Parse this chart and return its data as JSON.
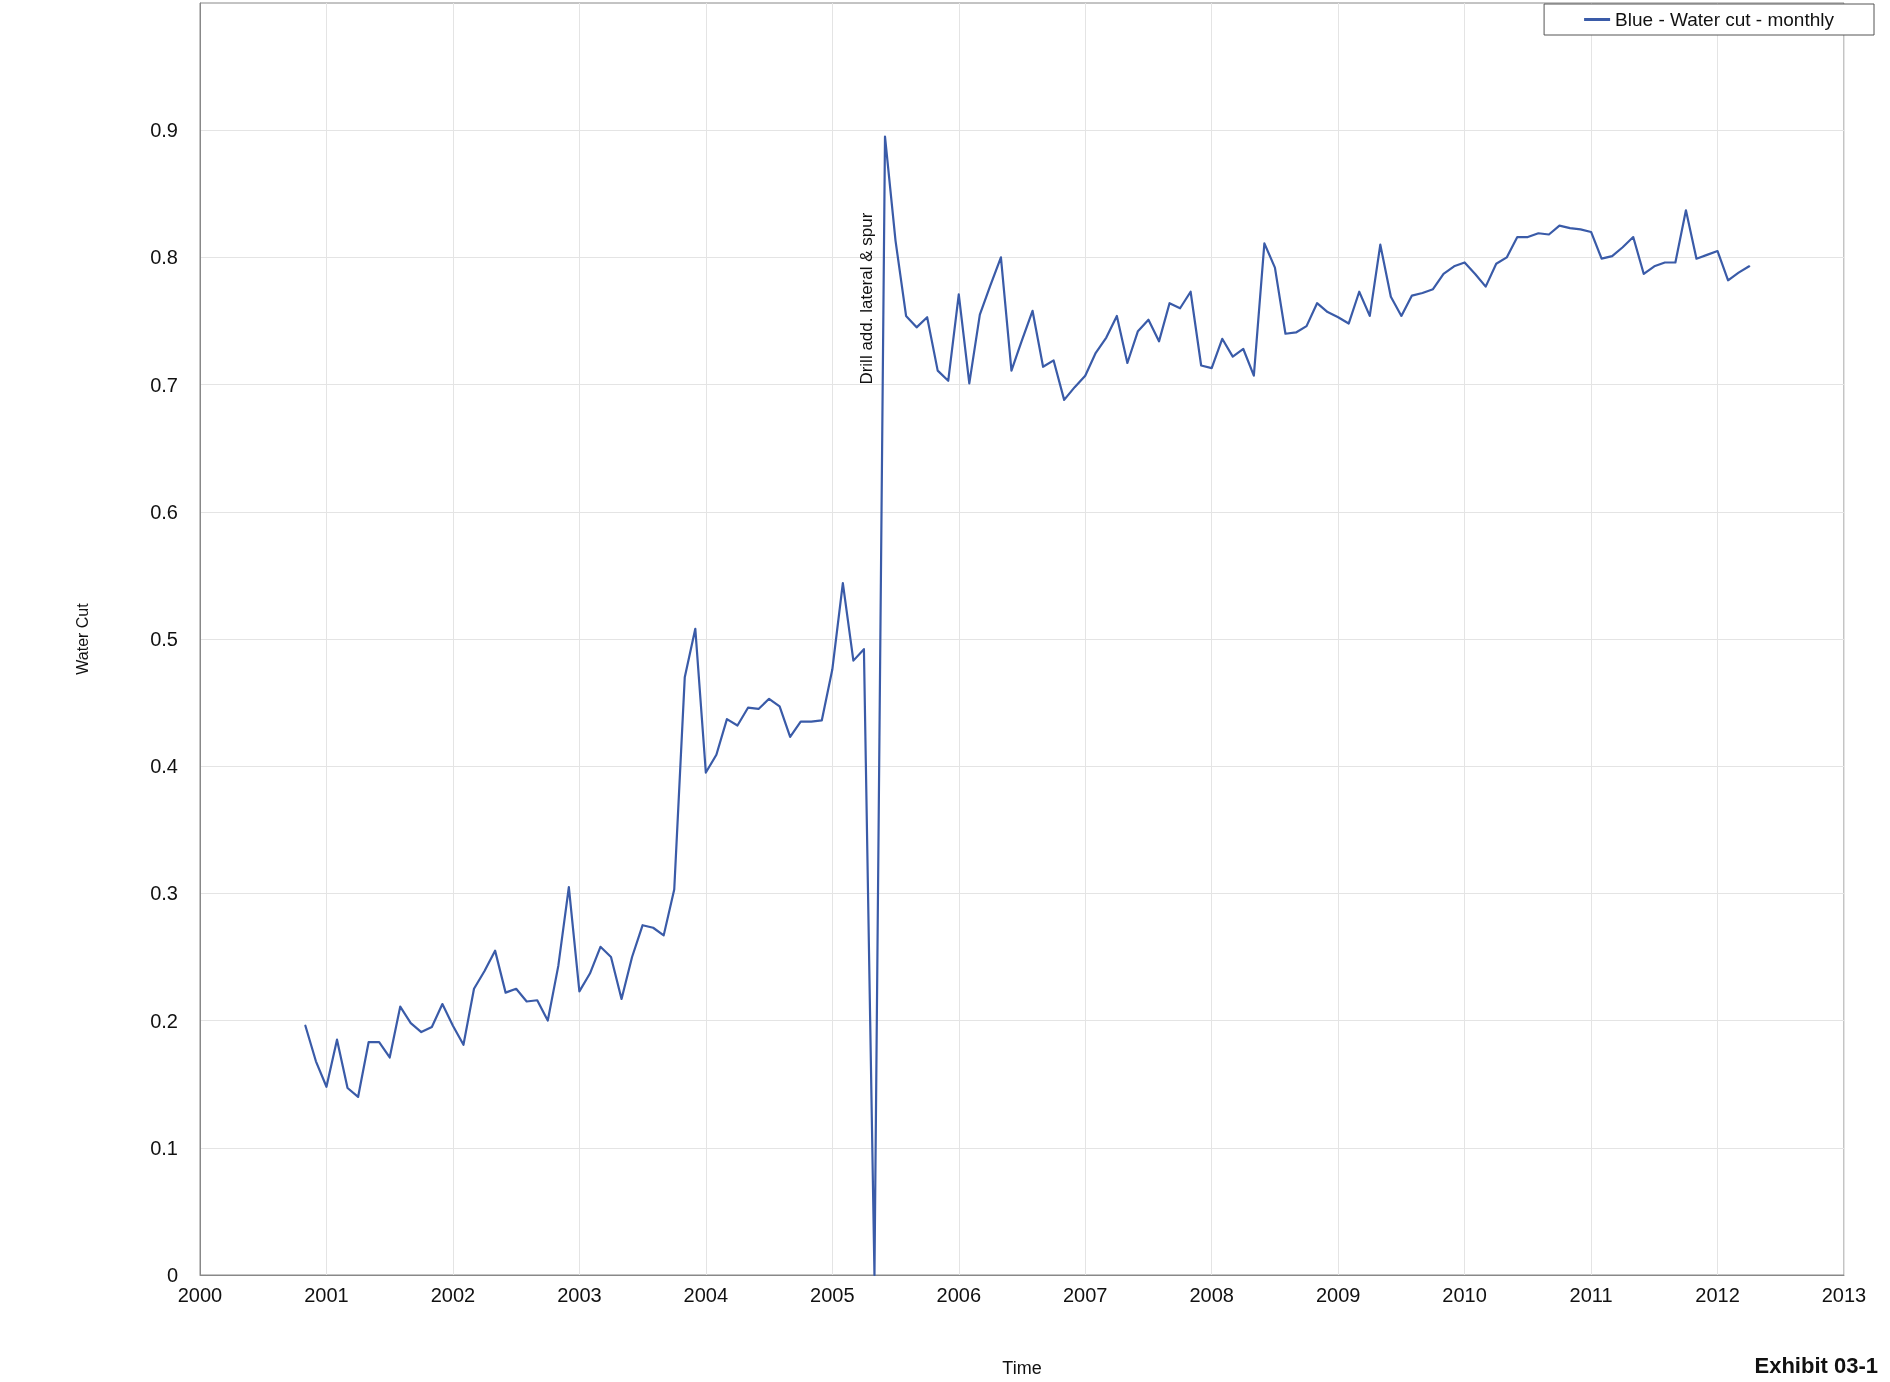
{
  "chart_data": {
    "type": "line",
    "xlabel": "Time",
    "ylabel": "Water Cut",
    "x": [
      "2000-11",
      "2000-12",
      "2001-01",
      "2001-02",
      "2001-03",
      "2001-04",
      "2001-05",
      "2001-06",
      "2001-07",
      "2001-08",
      "2001-09",
      "2001-10",
      "2001-11",
      "2001-12",
      "2002-01",
      "2002-02",
      "2002-03",
      "2002-04",
      "2002-05",
      "2002-06",
      "2002-07",
      "2002-08",
      "2002-09",
      "2002-10",
      "2002-11",
      "2002-12",
      "2003-01",
      "2003-02",
      "2003-03",
      "2003-04",
      "2003-05",
      "2003-06",
      "2003-07",
      "2003-08",
      "2003-09",
      "2003-10",
      "2003-11",
      "2003-12",
      "2004-01",
      "2004-02",
      "2004-03",
      "2004-04",
      "2004-05",
      "2004-06",
      "2004-07",
      "2004-08",
      "2004-09",
      "2004-10",
      "2004-11",
      "2004-12",
      "2005-01",
      "2005-02",
      "2005-03",
      "2005-04",
      "2005-05",
      "2005-06",
      "2005-07",
      "2005-08",
      "2005-09",
      "2005-10",
      "2005-11",
      "2005-12",
      "2006-01",
      "2006-02",
      "2006-03",
      "2006-04",
      "2006-05",
      "2006-06",
      "2006-07",
      "2006-08",
      "2006-09",
      "2006-10",
      "2006-11",
      "2006-12",
      "2007-01",
      "2007-02",
      "2007-03",
      "2007-04",
      "2007-05",
      "2007-06",
      "2007-07",
      "2007-08",
      "2007-09",
      "2007-10",
      "2007-11",
      "2007-12",
      "2008-01",
      "2008-02",
      "2008-03",
      "2008-04",
      "2008-05",
      "2008-06",
      "2008-07",
      "2008-08",
      "2008-09",
      "2008-10",
      "2008-11",
      "2008-12",
      "2009-01",
      "2009-02",
      "2009-03",
      "2009-04",
      "2009-05",
      "2009-06",
      "2009-07",
      "2009-08",
      "2009-09",
      "2009-10",
      "2009-11",
      "2009-12",
      "2010-01",
      "2010-02",
      "2010-03",
      "2010-04",
      "2010-05",
      "2010-06",
      "2010-07",
      "2010-08",
      "2010-09",
      "2010-10",
      "2010-11",
      "2010-12",
      "2011-01",
      "2011-02",
      "2011-03",
      "2011-04",
      "2011-05",
      "2011-06",
      "2011-07",
      "2011-08",
      "2011-09",
      "2011-10",
      "2011-11",
      "2011-12",
      "2012-01",
      "2012-02",
      "2012-03",
      "2012-04"
    ],
    "series": [
      {
        "name": "Blue - Water cut - monthly",
        "color": "#3a5ba8",
        "values": [
          0.196,
          0.168,
          0.148,
          0.185,
          0.147,
          0.14,
          0.183,
          0.183,
          0.171,
          0.211,
          0.198,
          0.191,
          0.195,
          0.213,
          0.196,
          0.181,
          0.225,
          0.239,
          0.255,
          0.222,
          0.225,
          0.215,
          0.216,
          0.2,
          0.243,
          0.305,
          0.223,
          0.237,
          0.258,
          0.25,
          0.217,
          0.25,
          0.275,
          0.273,
          0.267,
          0.303,
          0.47,
          0.508,
          0.395,
          0.409,
          0.437,
          0.432,
          0.446,
          0.445,
          0.453,
          0.447,
          0.423,
          0.435,
          0.435,
          0.436,
          0.476,
          0.544,
          0.483,
          0.492,
          0.0,
          0.895,
          0.813,
          0.754,
          0.745,
          0.753,
          0.711,
          0.703,
          0.771,
          0.701,
          0.755,
          0.778,
          0.8,
          0.711,
          0.735,
          0.758,
          0.714,
          0.719,
          0.688,
          0.698,
          0.707,
          0.725,
          0.737,
          0.754,
          0.717,
          0.742,
          0.751,
          0.734,
          0.764,
          0.76,
          0.773,
          0.715,
          0.713,
          0.736,
          0.722,
          0.728,
          0.707,
          0.811,
          0.792,
          0.74,
          0.741,
          0.746,
          0.764,
          0.757,
          0.753,
          0.748,
          0.773,
          0.754,
          0.81,
          0.769,
          0.754,
          0.77,
          0.772,
          0.775,
          0.787,
          0.793,
          0.796,
          0.787,
          0.777,
          0.795,
          0.8,
          0.816,
          0.816,
          0.819,
          0.818,
          0.825,
          0.823,
          0.822,
          0.82,
          0.799,
          0.801,
          0.808,
          0.816,
          0.787,
          0.793,
          0.796,
          0.796,
          0.837,
          0.799,
          0.802,
          0.805,
          0.782,
          0.788,
          0.793
        ]
      }
    ],
    "xlim": [
      "2000",
      "2013"
    ],
    "xticks": [
      "2000",
      "2001",
      "2002",
      "2003",
      "2004",
      "2005",
      "2006",
      "2007",
      "2008",
      "2009",
      "2010",
      "2011",
      "2012",
      "2013"
    ],
    "ylim": [
      0,
      1
    ],
    "yticks": [
      0,
      0.1,
      0.2,
      0.3,
      0.4,
      0.5,
      0.6,
      0.7,
      0.8,
      0.9
    ],
    "grid": true,
    "legend": "top right",
    "marker": "none",
    "line_style": "solid",
    "annotations": [
      {
        "text": "Drill add. lateral & spur",
        "x": "2005-06",
        "y": 0.7
      },
      "Exhibit 03-1"
    ]
  }
}
